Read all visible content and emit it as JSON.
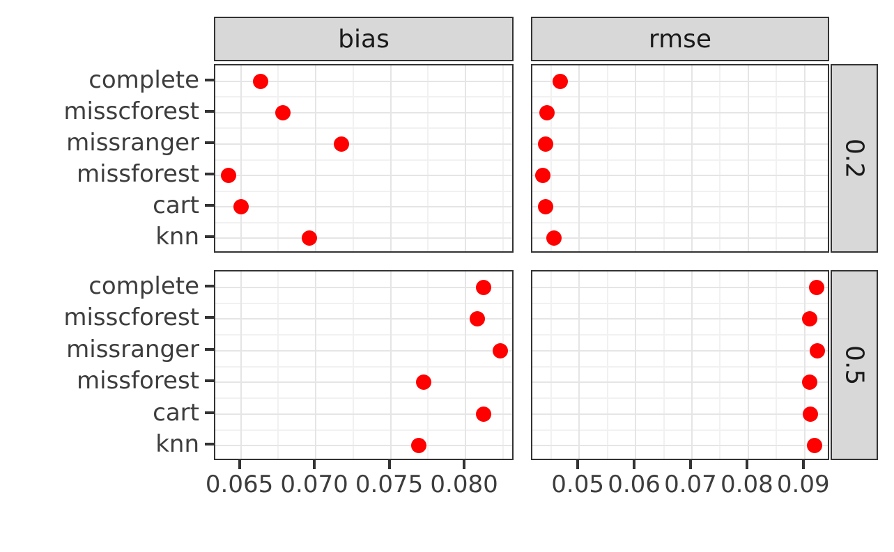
{
  "chart_data": {
    "type": "scatter",
    "title": "",
    "facet_columns": [
      "bias",
      "rmse"
    ],
    "facet_rows": [
      "0.2",
      "0.5"
    ],
    "categories": [
      "complete",
      "misscforest",
      "missranger",
      "missforest",
      "cart",
      "knn"
    ],
    "panels": [
      {
        "metric": "bias",
        "missingness": "0.2",
        "values": [
          0.0663,
          0.0678,
          0.0717,
          0.0642,
          0.065,
          0.0696
        ]
      },
      {
        "metric": "rmse",
        "missingness": "0.2",
        "values": [
          0.0467,
          0.0443,
          0.0441,
          0.0435,
          0.044,
          0.0455
        ]
      },
      {
        "metric": "bias",
        "missingness": "0.5",
        "values": [
          0.0812,
          0.0808,
          0.0823,
          0.0772,
          0.0812,
          0.0769
        ]
      },
      {
        "metric": "rmse",
        "missingness": "0.5",
        "values": [
          0.0921,
          0.0909,
          0.0922,
          0.0909,
          0.091,
          0.0917
        ]
      }
    ],
    "x_axes": {
      "bias": {
        "range": [
          0.0633,
          0.0833
        ],
        "ticks": [
          0.065,
          0.07,
          0.075,
          0.08
        ],
        "tick_labels": [
          "0.065",
          "0.070",
          "0.075",
          "0.080"
        ],
        "minor": [
          0.0675,
          0.0725,
          0.0775,
          0.0825
        ]
      },
      "rmse": {
        "range": [
          0.0417,
          0.0946
        ],
        "ticks": [
          0.05,
          0.06,
          0.07,
          0.08,
          0.09
        ],
        "tick_labels": [
          "0.05",
          "0.06",
          "0.07",
          "0.08",
          "0.09"
        ],
        "minor": [
          0.045,
          0.055,
          0.065,
          0.075,
          0.085
        ]
      }
    },
    "ylabel": "",
    "xlabel": "",
    "legend_position": "none",
    "grid": true,
    "point_color": "#ff0000",
    "colors": {
      "strip_bg": "#d8d8d8",
      "strip_text": "#1a1a1a",
      "panel_border": "#333333",
      "grid_major": "#e5e5e5",
      "grid_minor": "#f1f1f1",
      "axis_text": "#3d3d3d",
      "background": "#ffffff"
    }
  }
}
